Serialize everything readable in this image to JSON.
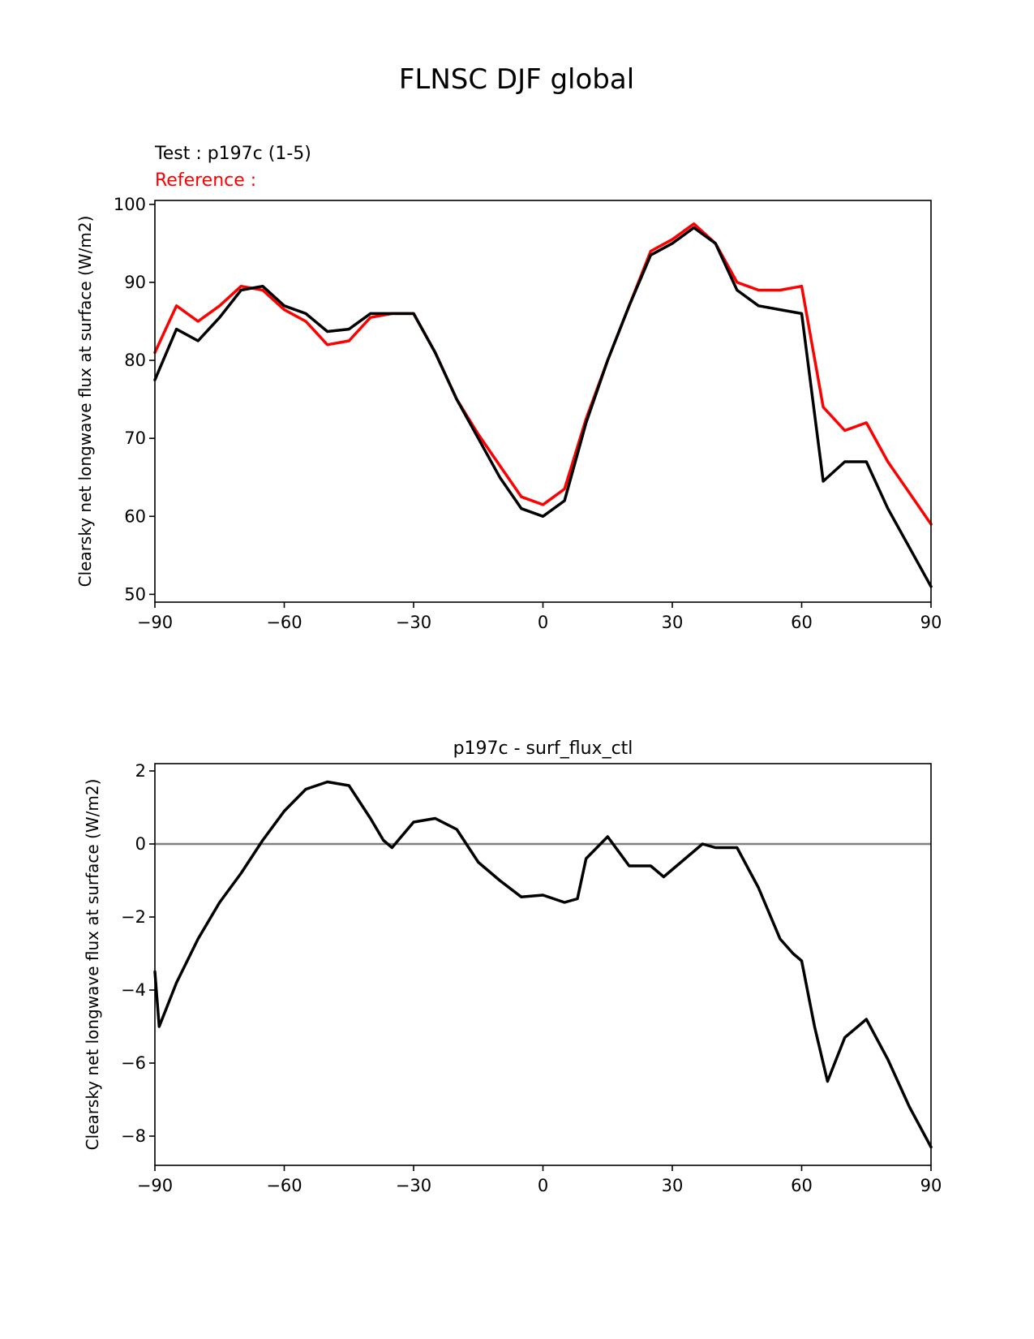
{
  "figure": {
    "title": "FLNSC DJF global",
    "test_label": "Test : p197c (1-5)",
    "reference_label": "Reference :"
  },
  "colors": {
    "test": "#000000",
    "reference": "#ff0000",
    "zero_line": "#808080"
  },
  "chart_data": [
    {
      "type": "line",
      "title": "",
      "xlabel": "",
      "ylabel": "Clearsky net longwave flux at surface (W/m2)",
      "xlim": [
        -90,
        90
      ],
      "ylim": [
        49,
        100.5
      ],
      "xticks": [
        -90,
        -60,
        -30,
        0,
        30,
        60,
        90
      ],
      "xtick_labels": [
        "−90",
        "−60",
        "−30",
        "0",
        "30",
        "60",
        "90"
      ],
      "yticks": [
        50,
        60,
        70,
        80,
        90,
        100
      ],
      "ytick_labels": [
        "50",
        "60",
        "70",
        "80",
        "90",
        "100"
      ],
      "grid": false,
      "x": [
        -90,
        -85,
        -80,
        -75,
        -70,
        -65,
        -60,
        -55,
        -50,
        -45,
        -40,
        -35,
        -30,
        -25,
        -20,
        -15,
        -10,
        -5,
        0,
        5,
        10,
        15,
        20,
        25,
        30,
        35,
        40,
        45,
        50,
        55,
        60,
        65,
        70,
        75,
        80,
        85,
        90
      ],
      "series": [
        {
          "name": "Test : p197c (1-5)",
          "color": "test",
          "values": [
            77.5,
            84.0,
            82.5,
            85.5,
            89.0,
            89.5,
            87.0,
            86.0,
            83.7,
            84.0,
            86.0,
            86.0,
            86.0,
            81.0,
            75.0,
            70.0,
            65.0,
            61.0,
            60.0,
            62.0,
            72.0,
            80.0,
            87.0,
            93.5,
            95.0,
            97.0,
            95.0,
            89.0,
            87.0,
            86.5,
            86.0,
            64.5,
            67.0,
            67.0,
            61.0,
            56.0,
            51.0
          ]
        },
        {
          "name": "Reference :",
          "color": "reference",
          "values": [
            81.0,
            87.0,
            85.0,
            87.0,
            89.5,
            89.0,
            86.5,
            85.0,
            82.0,
            82.5,
            85.5,
            86.0,
            86.0,
            81.0,
            75.0,
            70.5,
            66.5,
            62.5,
            61.5,
            63.5,
            72.5,
            80.0,
            87.0,
            94.0,
            95.5,
            97.5,
            95.0,
            90.0,
            89.0,
            89.0,
            89.5,
            74.0,
            71.0,
            72.0,
            67.0,
            63.0,
            59.0
          ]
        }
      ]
    },
    {
      "type": "line",
      "title": "p197c - surf_flux_ctl",
      "xlabel": "",
      "ylabel": "Clearsky net longwave flux at surface (W/m2)",
      "xlim": [
        -90,
        90
      ],
      "ylim": [
        -8.8,
        2.2
      ],
      "xticks": [
        -90,
        -60,
        -30,
        0,
        30,
        60,
        90
      ],
      "xtick_labels": [
        "−90",
        "−60",
        "−30",
        "0",
        "30",
        "60",
        "90"
      ],
      "yticks": [
        2,
        0,
        -2,
        -4,
        -6,
        -8
      ],
      "ytick_labels": [
        "2",
        "0",
        "−2",
        "−4",
        "−6",
        "−8"
      ],
      "grid": false,
      "reference_line": 0,
      "x": [
        -90,
        -89,
        -85,
        -80,
        -75,
        -70,
        -65,
        -60,
        -55,
        -50,
        -45,
        -40,
        -37,
        -35,
        -30,
        -25,
        -20,
        -15,
        -10,
        -5,
        0,
        5,
        8,
        10,
        15,
        20,
        25,
        28,
        30,
        35,
        37,
        40,
        45,
        50,
        55,
        58,
        60,
        63,
        66,
        70,
        75,
        80,
        85,
        90
      ],
      "series": [
        {
          "name": "",
          "color": "test",
          "values": [
            -3.5,
            -5.0,
            -3.8,
            -2.6,
            -1.6,
            -0.8,
            0.1,
            0.9,
            1.5,
            1.7,
            1.6,
            0.7,
            0.1,
            -0.1,
            0.6,
            0.7,
            0.4,
            -0.5,
            -1.0,
            -1.45,
            -1.4,
            -1.6,
            -1.5,
            -0.4,
            0.2,
            -0.6,
            -0.6,
            -0.9,
            -0.7,
            -0.2,
            0.0,
            -0.1,
            -0.1,
            -1.2,
            -2.6,
            -3.0,
            -3.2,
            -5.0,
            -6.5,
            -5.3,
            -4.8,
            -5.9,
            -7.2,
            -8.3
          ]
        }
      ]
    }
  ]
}
